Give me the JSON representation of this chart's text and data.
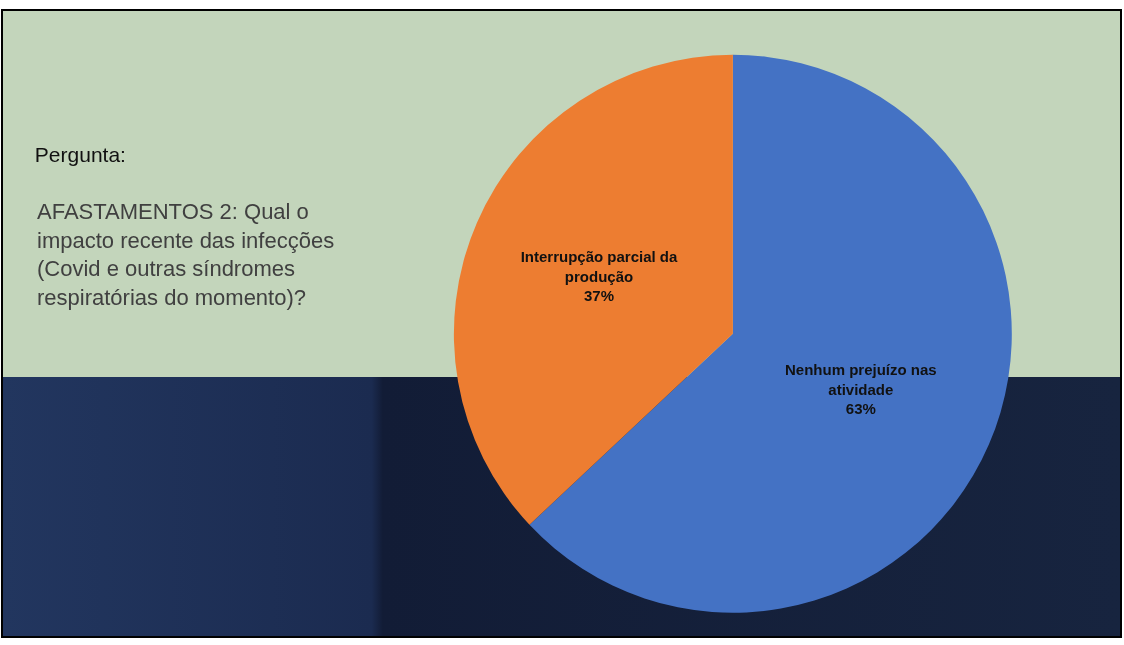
{
  "chart_data": {
    "type": "pie",
    "title": "Pergunta:",
    "subtitle": "AFASTAMENTOS 2: Qual o impacto recente das infecções (Covid e outras síndromes respiratórias do momento)?",
    "categories": [
      "Nenhum prejuízo nas atividade",
      "Interrupção parcial da produção"
    ],
    "values": [
      63,
      37
    ],
    "value_labels": [
      "63%",
      "37%"
    ],
    "colors": [
      "#4472c4",
      "#ed7d31"
    ]
  }
}
